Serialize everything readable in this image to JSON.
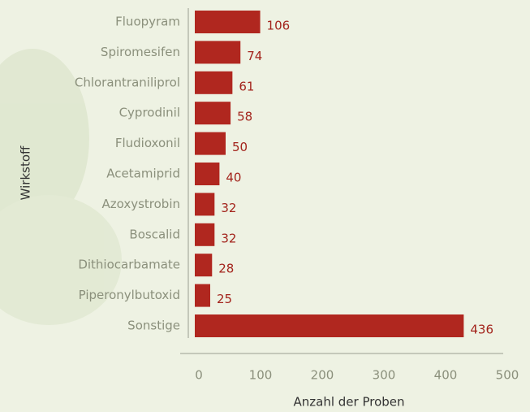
{
  "chart_data": {
    "type": "bar",
    "orientation": "horizontal",
    "categories": [
      "Fluopyram",
      "Spiromesifen",
      "Chlorantraniliprol",
      "Cyprodinil",
      "Fludioxonil",
      "Acetamiprid",
      "Azoxystrobin",
      "Boscalid",
      "Dithiocarbamate",
      "Piperonylbutoxid",
      "Sonstige"
    ],
    "values": [
      106,
      74,
      61,
      58,
      50,
      40,
      32,
      32,
      28,
      25,
      436
    ],
    "color": "#b0271f",
    "xlim": [
      0,
      500
    ],
    "xticks": [
      0,
      100,
      200,
      300,
      400,
      500
    ],
    "xlabel": "Anzahl der Proben",
    "ylabel": "Wirkstoff"
  }
}
